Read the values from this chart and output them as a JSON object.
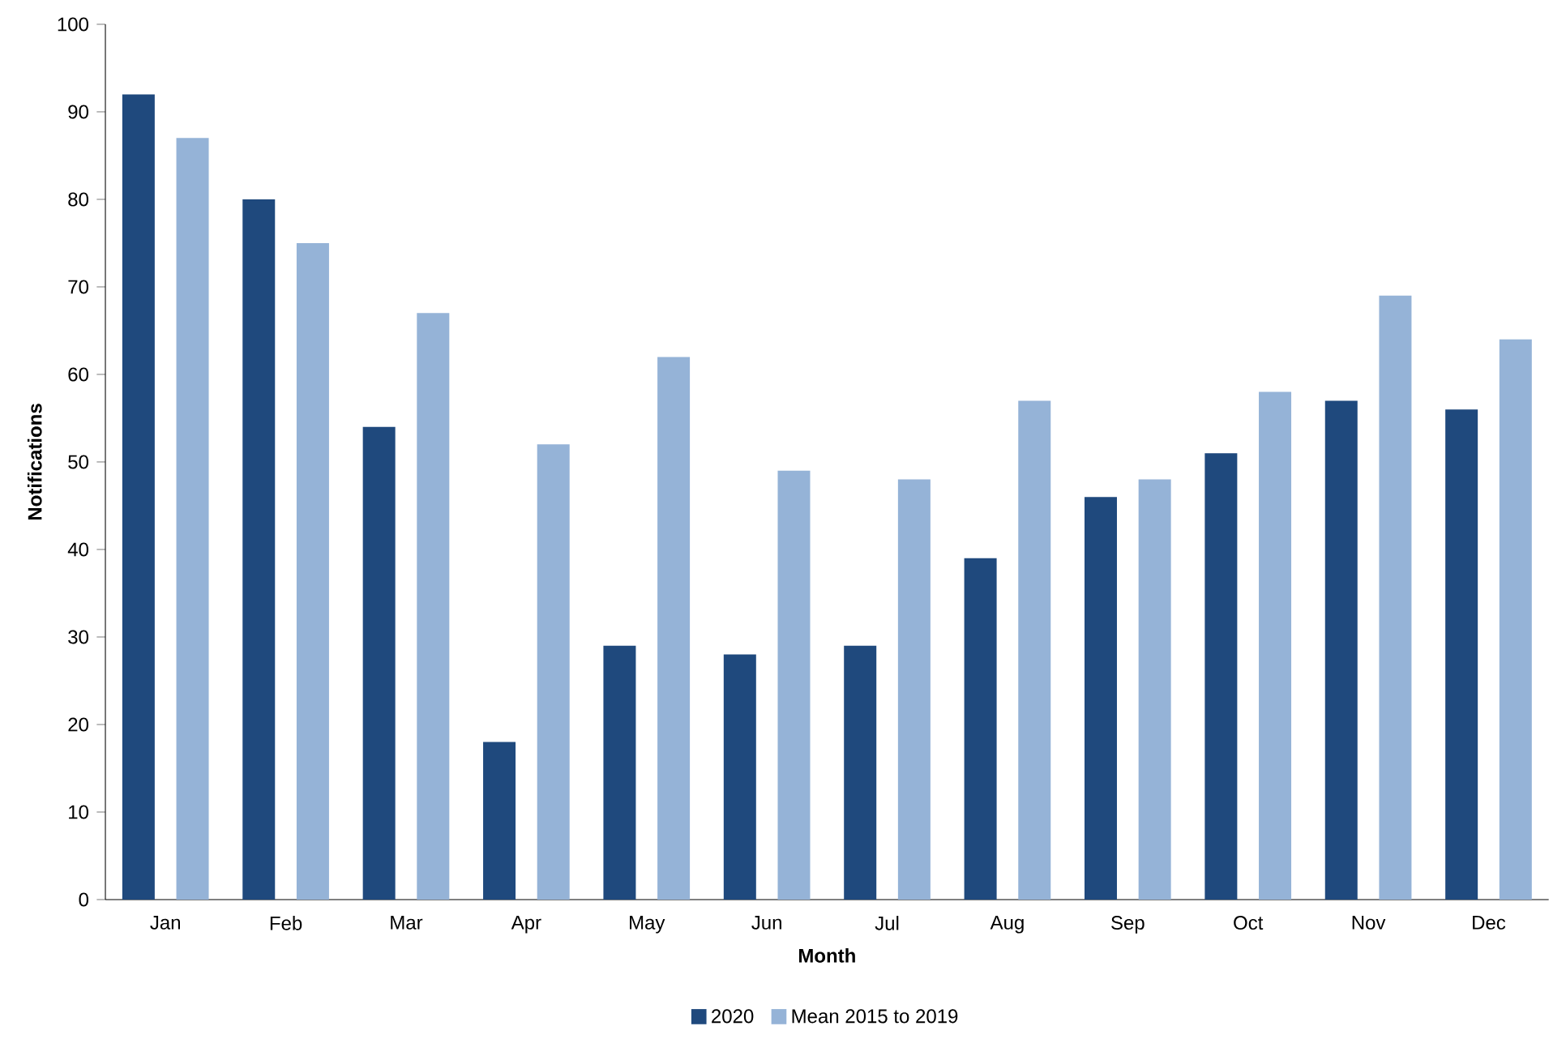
{
  "chart_data": {
    "type": "bar",
    "xlabel": "Month",
    "ylabel": "Notifications",
    "categories": [
      "Jan",
      "Feb",
      "Mar",
      "Apr",
      "May",
      "Jun",
      "Jul",
      "Aug",
      "Sep",
      "Oct",
      "Nov",
      "Dec"
    ],
    "series": [
      {
        "name": "2020",
        "color": "#1f497d",
        "values": [
          92,
          80,
          54,
          18,
          29,
          28,
          29,
          39,
          46,
          51,
          57,
          56
        ]
      },
      {
        "name": "Mean 2015 to 2019",
        "color": "#95b3d7",
        "values": [
          87,
          75,
          67,
          52,
          62,
          49,
          48,
          57,
          48,
          58,
          69,
          64
        ]
      }
    ],
    "ylim": [
      0,
      100
    ],
    "yticks": [
      0,
      10,
      20,
      30,
      40,
      50,
      60,
      70,
      80,
      90,
      100
    ],
    "grid": false,
    "legend": "bottom"
  }
}
